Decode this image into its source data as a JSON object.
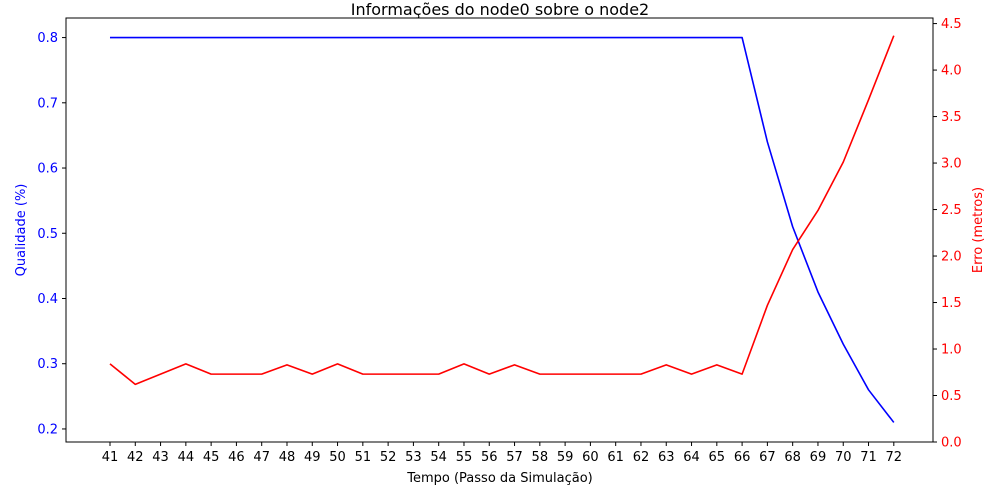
{
  "chart_data": {
    "type": "line",
    "title": "Informações do node0 sobre o node2",
    "xlabel": "Tempo (Passo da Simulação)",
    "ylabel_left": "Qualidade (%)",
    "ylabel_right": "Erro (metros)",
    "x": [
      41,
      42,
      43,
      44,
      45,
      46,
      47,
      48,
      49,
      50,
      51,
      52,
      53,
      54,
      55,
      56,
      57,
      58,
      59,
      60,
      61,
      62,
      63,
      64,
      65,
      66,
      67,
      68,
      69,
      70,
      71,
      72
    ],
    "x_ticks": [
      "41",
      "42",
      "43",
      "44",
      "45",
      "46",
      "47",
      "48",
      "49",
      "50",
      "51",
      "52",
      "53",
      "54",
      "55",
      "56",
      "57",
      "58",
      "59",
      "60",
      "61",
      "62",
      "63",
      "64",
      "65",
      "66",
      "67",
      "68",
      "69",
      "70",
      "71",
      "72"
    ],
    "y_left_lim": [
      0.18,
      0.83
    ],
    "y_left_ticks": [
      "0.2",
      "0.3",
      "0.4",
      "0.5",
      "0.6",
      "0.7",
      "0.8"
    ],
    "y_right_lim": [
      0.0,
      4.56
    ],
    "y_right_ticks": [
      "0.0",
      "0.5",
      "1.0",
      "1.5",
      "2.0",
      "2.5",
      "3.0",
      "3.5",
      "4.0",
      "4.5"
    ],
    "grid": false,
    "series": [
      {
        "axis": "left",
        "color": "#0000ff",
        "values": [
          0.8,
          0.8,
          0.8,
          0.8,
          0.8,
          0.8,
          0.8,
          0.8,
          0.8,
          0.8,
          0.8,
          0.8,
          0.8,
          0.8,
          0.8,
          0.8,
          0.8,
          0.8,
          0.8,
          0.8,
          0.8,
          0.8,
          0.8,
          0.8,
          0.8,
          0.8,
          0.64,
          0.51,
          0.41,
          0.33,
          0.26,
          0.21
        ]
      },
      {
        "axis": "right",
        "color": "#ff0000",
        "values": [
          0.84,
          0.62,
          0.73,
          0.84,
          0.73,
          0.73,
          0.73,
          0.83,
          0.73,
          0.84,
          0.73,
          0.73,
          0.73,
          0.73,
          0.84,
          0.73,
          0.83,
          0.73,
          0.73,
          0.73,
          0.73,
          0.73,
          0.83,
          0.73,
          0.83,
          0.73,
          1.47,
          2.07,
          2.49,
          3.01,
          3.68,
          4.37
        ]
      }
    ]
  }
}
